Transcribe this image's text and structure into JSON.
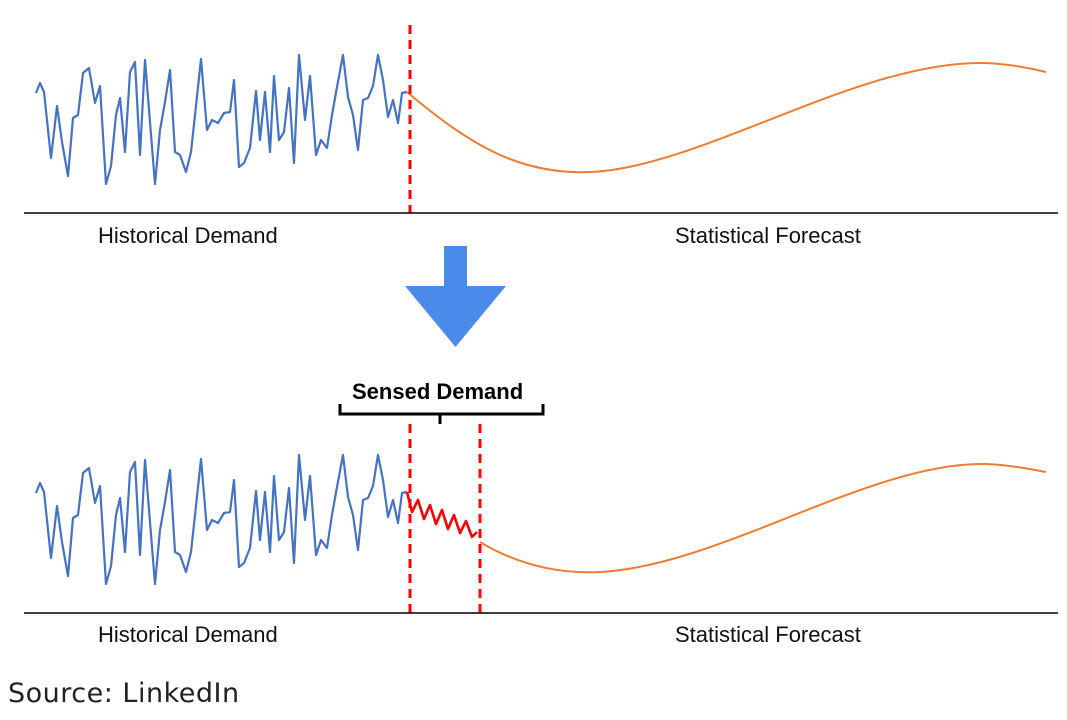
{
  "top_panel": {
    "historical_label": "Historical Demand",
    "forecast_label": "Statistical Forecast"
  },
  "bottom_panel": {
    "sensed_label": "Sensed Demand",
    "historical_label": "Historical Demand",
    "forecast_label": "Statistical Forecast"
  },
  "arrow_icon": "down-arrow-icon",
  "source": "Source: LinkedIn",
  "colors": {
    "historical": "#4472C4",
    "forecast": "#ED7D31",
    "sensed": "#FF0000",
    "divider": "#FF0000",
    "arrow": "#4A8BEA",
    "axis": "#000000"
  }
}
